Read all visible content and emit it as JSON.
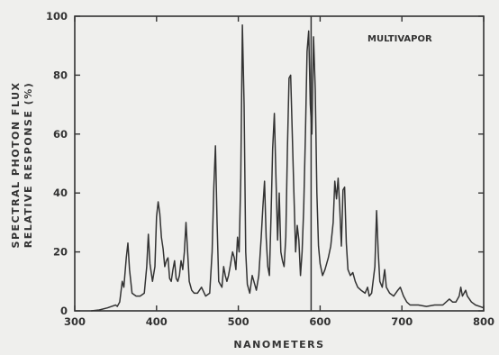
{
  "chart_data": {
    "type": "line",
    "title": "",
    "legend_label": "MULTIVAPOR",
    "xlabel": "NANOMETERS",
    "ylabel_lines": [
      "SPECTRAL PHOTON FLUX",
      "RELATIVE RESPONSE (%)"
    ],
    "xlim": [
      300,
      800
    ],
    "ylim": [
      0,
      100
    ],
    "x_ticks": [
      300,
      400,
      500,
      600,
      700,
      800
    ],
    "y_ticks": [
      0,
      20,
      40,
      60,
      80,
      100
    ],
    "x_tick_labels": [
      "300",
      "400",
      "500",
      "600",
      "700",
      "800"
    ],
    "y_tick_labels": [
      "0",
      "20",
      "40",
      "60",
      "80",
      "100"
    ],
    "grid": false,
    "reference_line_x": 589,
    "series": [
      {
        "name": "",
        "color": "#333333",
        "points": [
          [
            320,
            0
          ],
          [
            330,
            0.3
          ],
          [
            340,
            1
          ],
          [
            345,
            1.5
          ],
          [
            350,
            2
          ],
          [
            352,
            1.5
          ],
          [
            355,
            3
          ],
          [
            358,
            10
          ],
          [
            360,
            8
          ],
          [
            363,
            18
          ],
          [
            365,
            23
          ],
          [
            367,
            14
          ],
          [
            370,
            6
          ],
          [
            375,
            5
          ],
          [
            380,
            5
          ],
          [
            385,
            6
          ],
          [
            388,
            15
          ],
          [
            390,
            26
          ],
          [
            392,
            16
          ],
          [
            395,
            10
          ],
          [
            398,
            15
          ],
          [
            400,
            32
          ],
          [
            402,
            37
          ],
          [
            404,
            33
          ],
          [
            406,
            25
          ],
          [
            408,
            21
          ],
          [
            410,
            15
          ],
          [
            412,
            17
          ],
          [
            414,
            18
          ],
          [
            416,
            11
          ],
          [
            418,
            10
          ],
          [
            420,
            14
          ],
          [
            422,
            17
          ],
          [
            424,
            11
          ],
          [
            426,
            10
          ],
          [
            428,
            12
          ],
          [
            430,
            17
          ],
          [
            432,
            14
          ],
          [
            434,
            20
          ],
          [
            436,
            30
          ],
          [
            438,
            20
          ],
          [
            440,
            10
          ],
          [
            443,
            7
          ],
          [
            446,
            6
          ],
          [
            450,
            6
          ],
          [
            455,
            8
          ],
          [
            460,
            5
          ],
          [
            465,
            6
          ],
          [
            468,
            20
          ],
          [
            470,
            42
          ],
          [
            472,
            56
          ],
          [
            474,
            30
          ],
          [
            476,
            10
          ],
          [
            478,
            9
          ],
          [
            480,
            8
          ],
          [
            482,
            15
          ],
          [
            484,
            12
          ],
          [
            486,
            10
          ],
          [
            488,
            12
          ],
          [
            490,
            15
          ],
          [
            493,
            20
          ],
          [
            495,
            18
          ],
          [
            497,
            14
          ],
          [
            499,
            25
          ],
          [
            501,
            20
          ],
          [
            503,
            45
          ],
          [
            505,
            97
          ],
          [
            507,
            70
          ],
          [
            509,
            20
          ],
          [
            511,
            9
          ],
          [
            514,
            6
          ],
          [
            517,
            12
          ],
          [
            520,
            9
          ],
          [
            522,
            7
          ],
          [
            525,
            12
          ],
          [
            528,
            25
          ],
          [
            530,
            35
          ],
          [
            532,
            44
          ],
          [
            534,
            25
          ],
          [
            536,
            15
          ],
          [
            538,
            12
          ],
          [
            540,
            32
          ],
          [
            542,
            55
          ],
          [
            544,
            67
          ],
          [
            546,
            45
          ],
          [
            548,
            24
          ],
          [
            550,
            40
          ],
          [
            552,
            20
          ],
          [
            554,
            17
          ],
          [
            556,
            15
          ],
          [
            558,
            25
          ],
          [
            560,
            55
          ],
          [
            562,
            79
          ],
          [
            564,
            80
          ],
          [
            566,
            60
          ],
          [
            568,
            40
          ],
          [
            570,
            20
          ],
          [
            572,
            29
          ],
          [
            574,
            24
          ],
          [
            576,
            12
          ],
          [
            578,
            20
          ],
          [
            580,
            35
          ],
          [
            582,
            60
          ],
          [
            584,
            88
          ],
          [
            586,
            95
          ],
          [
            588,
            70
          ],
          [
            590,
            60
          ],
          [
            592,
            93
          ],
          [
            594,
            75
          ],
          [
            596,
            40
          ],
          [
            598,
            22
          ],
          [
            600,
            16
          ],
          [
            603,
            12
          ],
          [
            606,
            14
          ],
          [
            610,
            18
          ],
          [
            613,
            22
          ],
          [
            616,
            30
          ],
          [
            618,
            44
          ],
          [
            620,
            38
          ],
          [
            622,
            45
          ],
          [
            624,
            35
          ],
          [
            626,
            22
          ],
          [
            628,
            41
          ],
          [
            630,
            42
          ],
          [
            632,
            23
          ],
          [
            634,
            14
          ],
          [
            637,
            12
          ],
          [
            640,
            13
          ],
          [
            643,
            10
          ],
          [
            646,
            8
          ],
          [
            650,
            7
          ],
          [
            655,
            6
          ],
          [
            658,
            8
          ],
          [
            660,
            5
          ],
          [
            663,
            6
          ],
          [
            667,
            15
          ],
          [
            669,
            34
          ],
          [
            671,
            20
          ],
          [
            673,
            10
          ],
          [
            676,
            8
          ],
          [
            679,
            14
          ],
          [
            681,
            8
          ],
          [
            685,
            6
          ],
          [
            690,
            5
          ],
          [
            695,
            7
          ],
          [
            698,
            8
          ],
          [
            702,
            5
          ],
          [
            706,
            3
          ],
          [
            710,
            2
          ],
          [
            720,
            2
          ],
          [
            730,
            1.5
          ],
          [
            740,
            2
          ],
          [
            750,
            2
          ],
          [
            758,
            4
          ],
          [
            762,
            3
          ],
          [
            766,
            3
          ],
          [
            770,
            5
          ],
          [
            772,
            8
          ],
          [
            774,
            5
          ],
          [
            776,
            6
          ],
          [
            778,
            7
          ],
          [
            780,
            5
          ],
          [
            785,
            3
          ],
          [
            790,
            2
          ],
          [
            795,
            1.5
          ],
          [
            800,
            1
          ]
        ]
      }
    ]
  }
}
